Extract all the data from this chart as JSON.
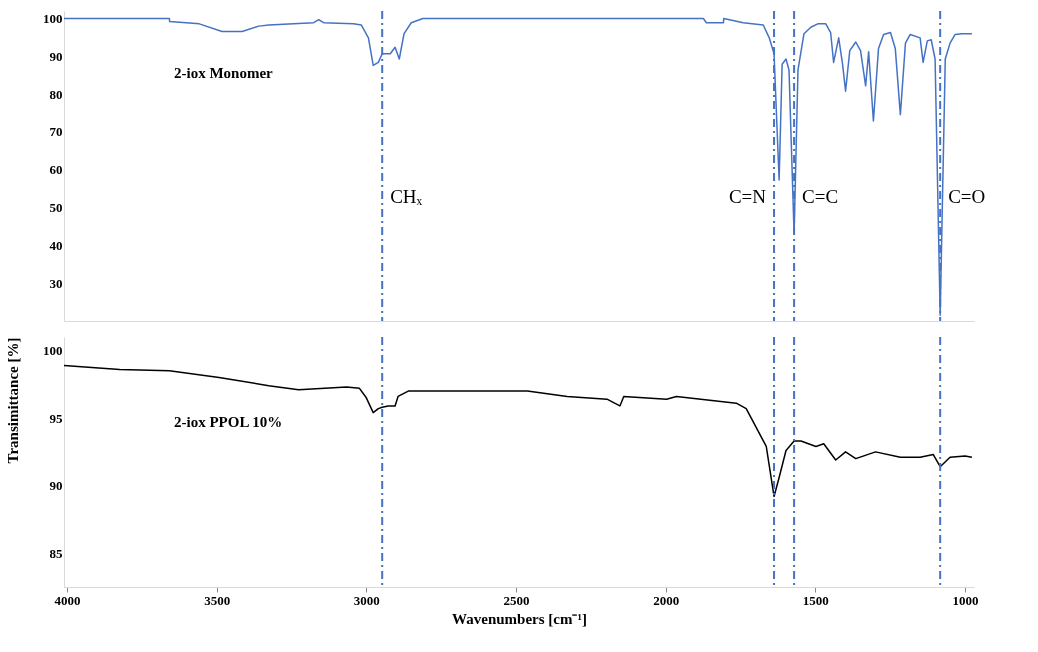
{
  "chart_data": [
    {
      "type": "line",
      "ylabel": null,
      "xlim": [
        4010,
        970
      ],
      "ylim": [
        20,
        102
      ],
      "yticks": [
        30,
        40,
        50,
        60,
        70,
        80,
        90,
        100
      ],
      "xticks": [
        4000,
        3500,
        3000,
        2500,
        2000,
        1500,
        1000
      ],
      "tick_labels": "y",
      "grid": false,
      "legend": false,
      "line_style": "solid",
      "marker": "none",
      "series": [
        {
          "name": "2-iox Monomer",
          "color": "#4472c4",
          "x": [
            4010,
            3658,
            3657,
            3558,
            3482,
            3415,
            3359,
            3326,
            3176,
            3159,
            3143,
            3043,
            3017,
            2993,
            2977,
            2960,
            2947,
            2920,
            2904,
            2890,
            2874,
            2850,
            2811,
            1874,
            1864,
            1807,
            1806,
            1741,
            1674,
            1654,
            1638,
            1621,
            1611,
            1598,
            1588,
            1571,
            1558,
            1538,
            1515,
            1492,
            1465,
            1449,
            1439,
            1422,
            1409,
            1399,
            1385,
            1365,
            1349,
            1332,
            1322,
            1306,
            1289,
            1272,
            1249,
            1233,
            1216,
            1199,
            1183,
            1150,
            1140,
            1126,
            1113,
            1100,
            1083,
            1066,
            1050,
            1033,
            1010,
            977
          ],
          "values": [
            100,
            100,
            99.2,
            98.6,
            96.6,
            96.6,
            98.0,
            98.3,
            98.9,
            99.7,
            98.9,
            98.6,
            98.3,
            94.9,
            87.6,
            88.4,
            90.7,
            90.7,
            92.4,
            89.3,
            96.0,
            98.9,
            100,
            100,
            98.9,
            98.9,
            100,
            98.9,
            98.3,
            94.9,
            90.7,
            57.3,
            87.9,
            89.3,
            86.4,
            43.0,
            86.4,
            96.0,
            97.7,
            98.6,
            98.6,
            96.3,
            88.4,
            94.9,
            87.9,
            80.8,
            91.5,
            93.8,
            91.5,
            82.2,
            91.2,
            72.9,
            92.1,
            95.8,
            96.3,
            92.1,
            74.6,
            93.5,
            95.8,
            94.9,
            88.4,
            94.1,
            94.4,
            89.3,
            21.5,
            89.3,
            93.5,
            95.8,
            96.0,
            96.0
          ]
        }
      ],
      "ref_lines": [
        {
          "axis": "x",
          "value": 2947,
          "label": "CHₓ",
          "color": "#4472c4",
          "line_style": "dashdot"
        },
        {
          "axis": "x",
          "value": 1638,
          "label": "C=N",
          "color": "#4472c4",
          "line_style": "dashdot"
        },
        {
          "axis": "x",
          "value": 1571,
          "label": "C=C",
          "color": "#4472c4",
          "line_style": "dashdot"
        },
        {
          "axis": "x",
          "value": 1083,
          "label": "C=O",
          "color": "#4472c4",
          "line_style": "dashdot"
        }
      ]
    },
    {
      "type": "line",
      "xlabel": "Wavenumbers [cm⁻¹]",
      "ylabel": "Transimittance [%]",
      "xlim": [
        4010,
        970
      ],
      "ylim": [
        82.5,
        101
      ],
      "yticks": [
        85,
        90,
        95,
        100
      ],
      "xticks": [
        4000,
        3500,
        3000,
        2500,
        2000,
        1500,
        1000
      ],
      "grid": false,
      "legend": false,
      "line_style": "solid",
      "marker": "none",
      "series": [
        {
          "name": "2-iox PPOL 10%",
          "color": "#000000",
          "x": [
            4010,
            3824,
            3658,
            3492,
            3326,
            3226,
            3066,
            3023,
            3000,
            2977,
            2960,
            2947,
            2927,
            2904,
            2894,
            2860,
            2661,
            2462,
            2329,
            2196,
            2153,
            2140,
            1997,
            1964,
            1764,
            1731,
            1664,
            1638,
            1621,
            1598,
            1571,
            1548,
            1498,
            1472,
            1432,
            1399,
            1365,
            1299,
            1216,
            1150,
            1106,
            1083,
            1050,
            1000,
            977
          ],
          "values": [
            98.9,
            98.6,
            98.5,
            98.0,
            97.4,
            97.1,
            97.3,
            97.2,
            96.5,
            95.4,
            95.7,
            95.8,
            95.9,
            95.9,
            96.6,
            97.0,
            97.0,
            97.0,
            96.6,
            96.4,
            95.9,
            96.6,
            96.4,
            96.6,
            96.1,
            95.7,
            92.9,
            89.2,
            90.6,
            92.6,
            93.3,
            93.3,
            92.9,
            93.1,
            91.9,
            92.5,
            92.0,
            92.5,
            92.1,
            92.1,
            92.3,
            91.4,
            92.1,
            92.2,
            92.1
          ]
        }
      ],
      "ref_lines": [
        {
          "axis": "x",
          "value": 2947,
          "color": "#4472c4",
          "line_style": "dashdot"
        },
        {
          "axis": "x",
          "value": 1638,
          "color": "#4472c4",
          "line_style": "dashdot"
        },
        {
          "axis": "x",
          "value": 1571,
          "color": "#4472c4",
          "line_style": "dashdot"
        },
        {
          "axis": "x",
          "value": 1083,
          "color": "#4472c4",
          "line_style": "dashdot"
        }
      ]
    }
  ]
}
